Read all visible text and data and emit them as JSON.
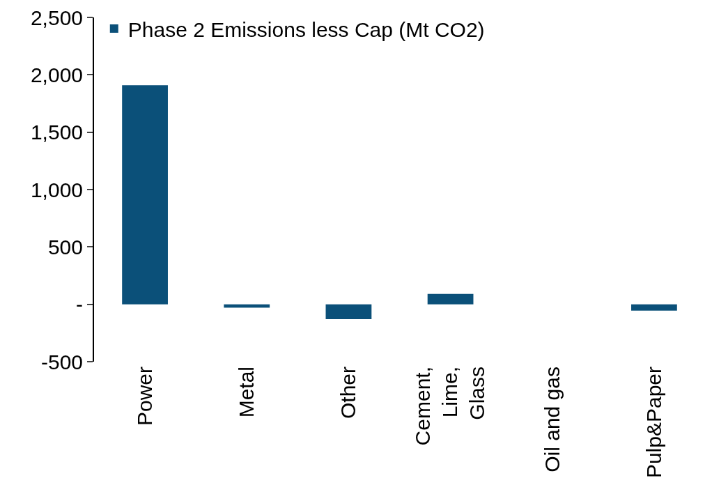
{
  "chart_data": {
    "type": "bar",
    "categories": [
      "Power",
      "Metal",
      "Other",
      "Cement, Lime, Glass",
      "Oil and gas",
      "Pulp&Paper"
    ],
    "series": [
      {
        "name": "Phase 2 Emissions less Cap (Mt CO2)",
        "color": "#0b5079",
        "values": [
          1910,
          -30,
          -130,
          90,
          0,
          -55
        ]
      }
    ],
    "ylim": [
      -500,
      2500
    ],
    "yticks": [
      -500,
      {
        "value": 0,
        "label": "-"
      },
      500,
      {
        "value": 1000,
        "label": "1,000"
      },
      {
        "value": 1500,
        "label": "1,500"
      },
      {
        "value": 2000,
        "label": "2,000"
      },
      {
        "value": 2500,
        "label": "2,500"
      }
    ],
    "grid": false,
    "legend": "top left"
  }
}
